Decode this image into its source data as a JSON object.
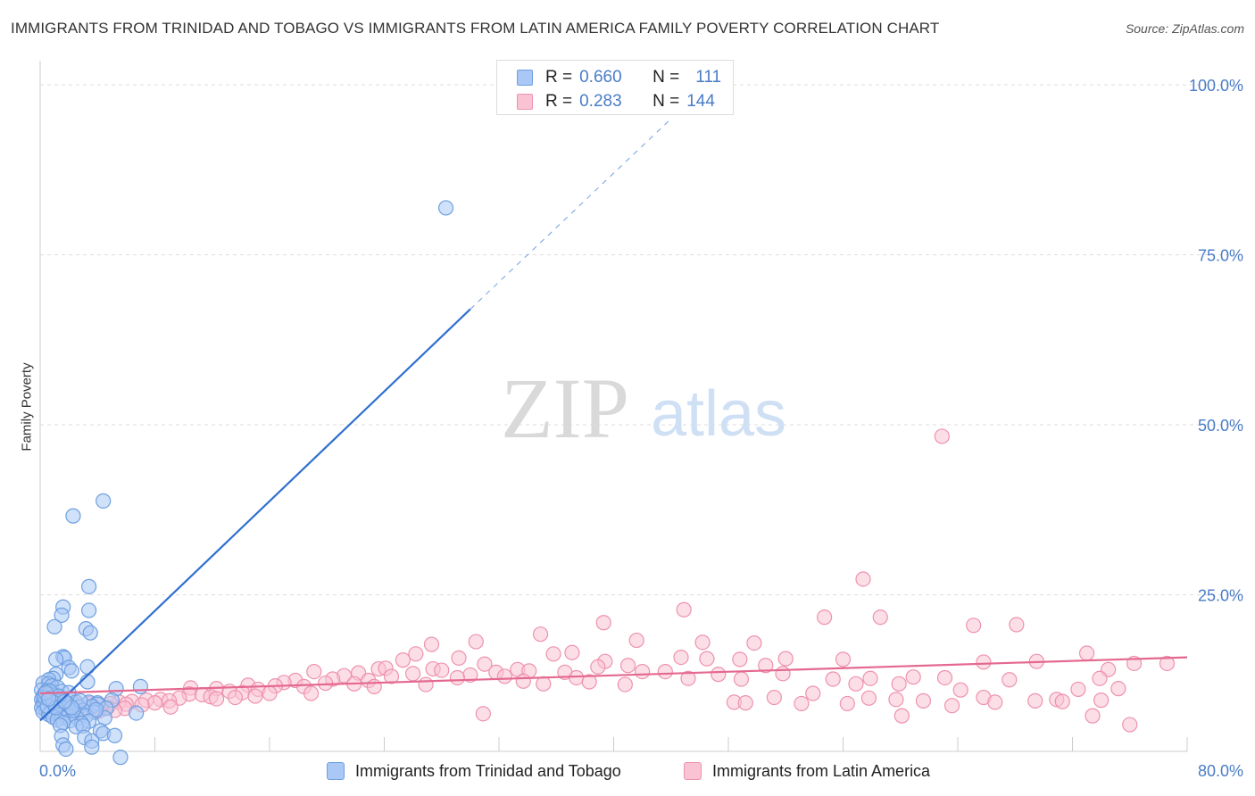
{
  "header": {
    "title": "IMMIGRANTS FROM TRINIDAD AND TOBAGO VS IMMIGRANTS FROM LATIN AMERICA FAMILY POVERTY CORRELATION CHART",
    "source": "Source: ZipAtlas.com"
  },
  "watermark": {
    "zip": "ZIP",
    "atlas": "atlas"
  },
  "stats_legend": [
    {
      "r_label": "R =",
      "r_value": "0.660",
      "n_label": "N =",
      "n_value": "111",
      "color": "#a9c8f5",
      "border": "#6f9fe0"
    },
    {
      "r_label": "R =",
      "r_value": "0.283",
      "n_label": "N =",
      "n_value": "144",
      "color": "#f9c3d3",
      "border": "#ee92ae"
    }
  ],
  "chart_data": {
    "type": "scatter",
    "title": "IMMIGRANTS FROM TRINIDAD AND TOBAGO VS IMMIGRANTS FROM LATIN AMERICA FAMILY POVERTY CORRELATION CHART",
    "xlabel": "",
    "ylabel": "Family Poverty",
    "xlim": [
      0,
      80
    ],
    "ylim": [
      0,
      100
    ],
    "x_tick_labels": [
      "0.0%",
      "80.0%"
    ],
    "y_ticks": [
      25,
      50,
      75,
      100
    ],
    "y_tick_labels": [
      "25.0%",
      "50.0%",
      "75.0%",
      "100.0%"
    ],
    "grid": true,
    "legend_position": "bottom-center",
    "series": [
      {
        "name": "Immigrants from Trinidad and Tobago",
        "color": "#6f9fe0",
        "fill": "#a9c8f5",
        "r": 0.66,
        "n": 111,
        "trend": {
          "x0": 0.0,
          "y0": 6.5,
          "x1": 30.0,
          "y1": 67.0,
          "dash_x1": 44.0,
          "dash_y1": 95.0
        },
        "points": [
          [
            28.3,
            81.9
          ],
          [
            4.4,
            38.8
          ],
          [
            2.3,
            36.6
          ],
          [
            3.4,
            26.2
          ],
          [
            1.6,
            23.2
          ],
          [
            3.4,
            22.7
          ],
          [
            1.5,
            22.0
          ],
          [
            1.0,
            20.3
          ],
          [
            3.2,
            20.0
          ],
          [
            3.5,
            19.4
          ],
          [
            1.6,
            15.9
          ],
          [
            1.7,
            15.7
          ],
          [
            1.1,
            15.5
          ],
          [
            3.3,
            14.4
          ],
          [
            2.0,
            14.3
          ],
          [
            2.2,
            13.8
          ],
          [
            1.1,
            13.3
          ],
          [
            0.9,
            12.7
          ],
          [
            0.6,
            12.5
          ],
          [
            3.3,
            12.2
          ],
          [
            0.2,
            12.0
          ],
          [
            0.6,
            11.9
          ],
          [
            0.8,
            11.6
          ],
          [
            1.2,
            11.4
          ],
          [
            5.3,
            11.2
          ],
          [
            7.0,
            11.5
          ],
          [
            0.1,
            11.0
          ],
          [
            0.5,
            10.9
          ],
          [
            1.5,
            10.8
          ],
          [
            2.0,
            10.6
          ],
          [
            0.3,
            10.4
          ],
          [
            0.7,
            10.3
          ],
          [
            1.0,
            10.2
          ],
          [
            0.2,
            10.0
          ],
          [
            0.5,
            9.9
          ],
          [
            1.4,
            9.8
          ],
          [
            2.1,
            9.7
          ],
          [
            0.1,
            9.6
          ],
          [
            0.8,
            9.5
          ],
          [
            1.1,
            9.4
          ],
          [
            5.0,
            9.5
          ],
          [
            0.4,
            9.3
          ],
          [
            2.5,
            9.2
          ],
          [
            3.4,
            9.2
          ],
          [
            4.0,
            9.1
          ],
          [
            0.2,
            9.0
          ],
          [
            0.6,
            8.9
          ],
          [
            1.0,
            8.9
          ],
          [
            1.6,
            8.8
          ],
          [
            4.0,
            8.9
          ],
          [
            0.3,
            8.7
          ],
          [
            0.9,
            8.6
          ],
          [
            2.0,
            8.6
          ],
          [
            2.7,
            8.5
          ],
          [
            3.6,
            8.6
          ],
          [
            0.1,
            8.4
          ],
          [
            0.5,
            8.3
          ],
          [
            1.2,
            8.3
          ],
          [
            1.8,
            8.2
          ],
          [
            4.6,
            8.3
          ],
          [
            0.4,
            8.1
          ],
          [
            0.8,
            8.0
          ],
          [
            1.4,
            8.0
          ],
          [
            2.4,
            7.9
          ],
          [
            3.0,
            8.0
          ],
          [
            0.2,
            7.8
          ],
          [
            0.7,
            7.7
          ],
          [
            1.0,
            7.6
          ],
          [
            1.7,
            7.6
          ],
          [
            3.8,
            7.7
          ],
          [
            0.6,
            7.4
          ],
          [
            1.3,
            7.3
          ],
          [
            2.0,
            7.2
          ],
          [
            3.2,
            7.2
          ],
          [
            6.7,
            7.6
          ],
          [
            0.9,
            7.0
          ],
          [
            1.5,
            6.9
          ],
          [
            2.6,
            6.8
          ],
          [
            4.5,
            6.9
          ],
          [
            1.2,
            6.6
          ],
          [
            2.1,
            6.5
          ],
          [
            3.4,
            6.4
          ],
          [
            1.6,
            6.2
          ],
          [
            2.9,
            6.1
          ],
          [
            1.4,
            5.8
          ],
          [
            2.5,
            5.6
          ],
          [
            3.0,
            5.7
          ],
          [
            4.2,
            5.0
          ],
          [
            4.4,
            4.6
          ],
          [
            1.5,
            4.2
          ],
          [
            3.1,
            4.0
          ],
          [
            3.6,
            3.5
          ],
          [
            5.2,
            4.3
          ],
          [
            1.6,
            2.9
          ],
          [
            3.6,
            2.6
          ],
          [
            1.8,
            2.3
          ],
          [
            5.6,
            1.1
          ],
          [
            0.3,
            9.9
          ],
          [
            0.5,
            8.6
          ],
          [
            1.9,
            9.0
          ],
          [
            2.3,
            8.0
          ],
          [
            0.7,
            10.8
          ],
          [
            1.3,
            10.1
          ],
          [
            0.9,
            9.2
          ],
          [
            1.1,
            8.4
          ],
          [
            0.4,
            10.6
          ],
          [
            2.8,
            9.4
          ],
          [
            2.2,
            8.4
          ],
          [
            1.7,
            9.3
          ],
          [
            0.6,
            9.7
          ],
          [
            3.9,
            8.1
          ]
        ]
      },
      {
        "name": "Immigrants from Latin America",
        "color": "#ee92ae",
        "fill": "#f9c3d3",
        "r": 0.283,
        "n": 144,
        "trend": {
          "x0": 0.0,
          "y0": 10.5,
          "x1": 80.0,
          "y1": 15.8
        },
        "points": [
          [
            62.9,
            48.3
          ],
          [
            57.4,
            27.3
          ],
          [
            44.9,
            22.8
          ],
          [
            54.7,
            21.7
          ],
          [
            58.6,
            21.7
          ],
          [
            39.3,
            20.9
          ],
          [
            65.1,
            20.5
          ],
          [
            68.1,
            20.6
          ],
          [
            34.9,
            19.2
          ],
          [
            41.6,
            18.3
          ],
          [
            30.4,
            18.1
          ],
          [
            46.2,
            18.0
          ],
          [
            27.3,
            17.7
          ],
          [
            49.8,
            17.9
          ],
          [
            35.8,
            16.3
          ],
          [
            37.1,
            16.5
          ],
          [
            26.2,
            16.3
          ],
          [
            29.2,
            15.7
          ],
          [
            44.7,
            15.8
          ],
          [
            46.5,
            15.6
          ],
          [
            48.8,
            15.5
          ],
          [
            52.0,
            15.6
          ],
          [
            56.0,
            15.5
          ],
          [
            69.5,
            15.2
          ],
          [
            65.8,
            15.1
          ],
          [
            39.4,
            15.2
          ],
          [
            25.3,
            15.4
          ],
          [
            31.0,
            14.8
          ],
          [
            41.0,
            14.6
          ],
          [
            50.6,
            14.6
          ],
          [
            38.9,
            14.4
          ],
          [
            27.4,
            14.1
          ],
          [
            33.3,
            14.0
          ],
          [
            23.6,
            14.1
          ],
          [
            24.1,
            14.2
          ],
          [
            28.0,
            13.9
          ],
          [
            34.1,
            13.8
          ],
          [
            42.0,
            13.7
          ],
          [
            36.6,
            13.6
          ],
          [
            26.0,
            13.4
          ],
          [
            31.8,
            13.6
          ],
          [
            47.3,
            13.3
          ],
          [
            43.6,
            13.7
          ],
          [
            51.8,
            13.4
          ],
          [
            19.1,
            13.7
          ],
          [
            22.2,
            13.5
          ],
          [
            30.0,
            13.2
          ],
          [
            32.4,
            13.0
          ],
          [
            21.2,
            13.1
          ],
          [
            24.5,
            13.0
          ],
          [
            29.1,
            12.8
          ],
          [
            37.4,
            12.8
          ],
          [
            45.2,
            12.7
          ],
          [
            48.9,
            12.6
          ],
          [
            57.9,
            12.7
          ],
          [
            20.4,
            12.6
          ],
          [
            17.8,
            12.4
          ],
          [
            22.9,
            12.4
          ],
          [
            33.7,
            12.3
          ],
          [
            38.3,
            12.2
          ],
          [
            60.9,
            12.9
          ],
          [
            63.1,
            12.8
          ],
          [
            67.6,
            12.5
          ],
          [
            55.3,
            12.6
          ],
          [
            17.0,
            12.1
          ],
          [
            19.9,
            12.0
          ],
          [
            21.9,
            11.9
          ],
          [
            35.1,
            11.9
          ],
          [
            40.8,
            11.8
          ],
          [
            56.9,
            11.9
          ],
          [
            59.9,
            11.9
          ],
          [
            26.9,
            11.8
          ],
          [
            14.5,
            11.7
          ],
          [
            16.4,
            11.6
          ],
          [
            18.4,
            11.5
          ],
          [
            23.3,
            11.5
          ],
          [
            10.5,
            11.3
          ],
          [
            12.3,
            11.2
          ],
          [
            15.2,
            11.1
          ],
          [
            64.2,
            11.0
          ],
          [
            72.4,
            11.1
          ],
          [
            13.2,
            10.8
          ],
          [
            14.1,
            10.6
          ],
          [
            16.0,
            10.5
          ],
          [
            10.4,
            10.4
          ],
          [
            11.3,
            10.3
          ],
          [
            18.9,
            10.5
          ],
          [
            53.9,
            10.5
          ],
          [
            15.0,
            10.1
          ],
          [
            11.9,
            10.0
          ],
          [
            13.6,
            9.9
          ],
          [
            9.7,
            9.8
          ],
          [
            12.3,
            9.7
          ],
          [
            8.4,
            9.6
          ],
          [
            7.4,
            9.5
          ],
          [
            9.0,
            9.4
          ],
          [
            6.4,
            9.3
          ],
          [
            5.5,
            9.2
          ],
          [
            8.0,
            9.1
          ],
          [
            4.9,
            9.0
          ],
          [
            3.4,
            9.0
          ],
          [
            6.0,
            8.9
          ],
          [
            2.5,
            8.9
          ],
          [
            7.1,
            8.8
          ],
          [
            4.2,
            8.8
          ],
          [
            1.5,
            8.7
          ],
          [
            1.9,
            8.6
          ],
          [
            3.7,
            8.5
          ],
          [
            9.1,
            8.5
          ],
          [
            4.7,
            8.4
          ],
          [
            5.9,
            8.3
          ],
          [
            2.2,
            8.4
          ],
          [
            1.2,
            8.2
          ],
          [
            3.0,
            8.1
          ],
          [
            0.7,
            8.0
          ],
          [
            5.2,
            8.0
          ],
          [
            4.1,
            7.9
          ],
          [
            2.8,
            7.7
          ],
          [
            1.6,
            7.5
          ],
          [
            51.2,
            9.9
          ],
          [
            57.8,
            9.8
          ],
          [
            65.8,
            9.9
          ],
          [
            59.7,
            9.6
          ],
          [
            61.6,
            9.4
          ],
          [
            70.9,
            9.6
          ],
          [
            74.0,
            9.5
          ],
          [
            71.3,
            9.3
          ],
          [
            48.4,
            9.2
          ],
          [
            30.9,
            7.5
          ],
          [
            49.2,
            9.1
          ],
          [
            56.3,
            9.0
          ],
          [
            69.4,
            9.4
          ],
          [
            53.1,
            9.0
          ],
          [
            66.6,
            9.2
          ],
          [
            63.6,
            8.7
          ],
          [
            60.1,
            7.2
          ],
          [
            73.4,
            7.2
          ],
          [
            75.2,
            11.2
          ],
          [
            73.0,
            16.4
          ],
          [
            74.5,
            14.0
          ],
          [
            76.3,
            14.9
          ],
          [
            73.9,
            12.7
          ],
          [
            78.6,
            14.9
          ],
          [
            76.0,
            5.9
          ]
        ]
      }
    ]
  }
}
